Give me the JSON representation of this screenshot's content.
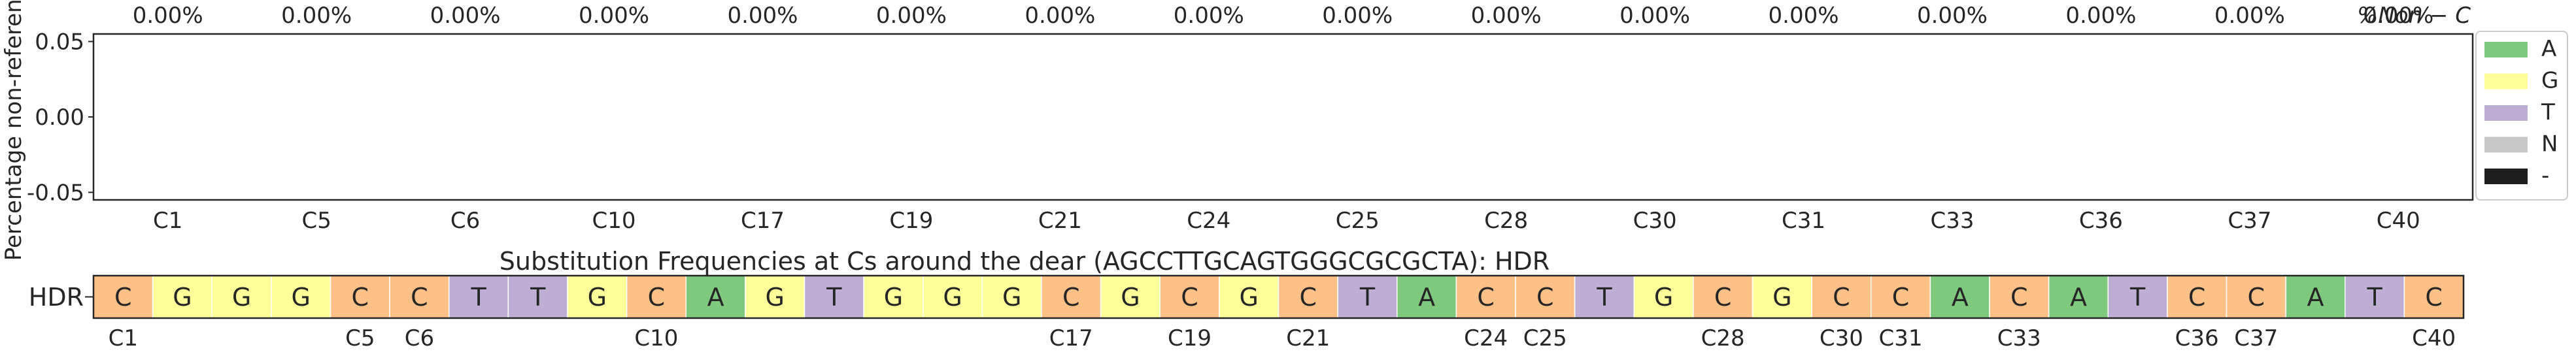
{
  "chart_data": {
    "type": "bar",
    "ylabel": "Percentage non-reference",
    "yticks": [
      "0.05",
      "0.00",
      "-0.05"
    ],
    "ylim": [
      -0.055,
      0.055
    ],
    "top_label": "%Non − C",
    "categories": [
      "C1",
      "C5",
      "C6",
      "C10",
      "C17",
      "C19",
      "C21",
      "C24",
      "C25",
      "C28",
      "C30",
      "C31",
      "C33",
      "C36",
      "C37",
      "C40"
    ],
    "top_percent_labels": [
      "0.00%",
      "0.00%",
      "0.00%",
      "0.00%",
      "0.00%",
      "0.00%",
      "0.00%",
      "0.00%",
      "0.00%",
      "0.00%",
      "0.00%",
      "0.00%",
      "0.00%",
      "0.00%",
      "0.00%",
      "0.00%"
    ],
    "series": [
      {
        "name": "A",
        "color": "#7fc97f",
        "values": [
          0,
          0,
          0,
          0,
          0,
          0,
          0,
          0,
          0,
          0,
          0,
          0,
          0,
          0,
          0,
          0
        ]
      },
      {
        "name": "G",
        "color": "#ffff99",
        "values": [
          0,
          0,
          0,
          0,
          0,
          0,
          0,
          0,
          0,
          0,
          0,
          0,
          0,
          0,
          0,
          0
        ]
      },
      {
        "name": "T",
        "color": "#beaed4",
        "values": [
          0,
          0,
          0,
          0,
          0,
          0,
          0,
          0,
          0,
          0,
          0,
          0,
          0,
          0,
          0,
          0
        ]
      },
      {
        "name": "N",
        "color": "#c8c8c8",
        "values": [
          0,
          0,
          0,
          0,
          0,
          0,
          0,
          0,
          0,
          0,
          0,
          0,
          0,
          0,
          0,
          0
        ]
      },
      {
        "name": "-",
        "color": "#1e1e1e",
        "values": [
          0,
          0,
          0,
          0,
          0,
          0,
          0,
          0,
          0,
          0,
          0,
          0,
          0,
          0,
          0,
          0
        ]
      }
    ],
    "legend_position": "right",
    "grid": false,
    "heatmap": {
      "title": "Substitution Frequencies at Cs around the dear (AGCCTTGCAGTGGGCGCGCTA): HDR",
      "row_label": "HDR",
      "sequence": [
        "C",
        "G",
        "G",
        "G",
        "C",
        "C",
        "T",
        "T",
        "G",
        "C",
        "A",
        "G",
        "T",
        "G",
        "G",
        "G",
        "C",
        "G",
        "C",
        "G",
        "C",
        "T",
        "A",
        "C",
        "C",
        "T",
        "G",
        "C",
        "G",
        "C",
        "C",
        "A",
        "C",
        "A",
        "T",
        "C",
        "C",
        "A",
        "T",
        "C"
      ],
      "base_colors": {
        "A": "#7fc97f",
        "G": "#ffff99",
        "T": "#beaed4",
        "C": "#fdc086"
      },
      "c_labels": [
        {
          "label": "C1",
          "index": 0
        },
        {
          "label": "C5",
          "index": 4
        },
        {
          "label": "C6",
          "index": 5
        },
        {
          "label": "C10",
          "index": 9
        },
        {
          "label": "C17",
          "index": 16
        },
        {
          "label": "C19",
          "index": 18
        },
        {
          "label": "C21",
          "index": 20
        },
        {
          "label": "C24",
          "index": 23
        },
        {
          "label": "C25",
          "index": 24
        },
        {
          "label": "C28",
          "index": 27
        },
        {
          "label": "C30",
          "index": 29
        },
        {
          "label": "C31",
          "index": 30
        },
        {
          "label": "C33",
          "index": 32
        },
        {
          "label": "C36",
          "index": 35
        },
        {
          "label": "C37",
          "index": 36
        },
        {
          "label": "C40",
          "index": 39
        }
      ]
    }
  }
}
